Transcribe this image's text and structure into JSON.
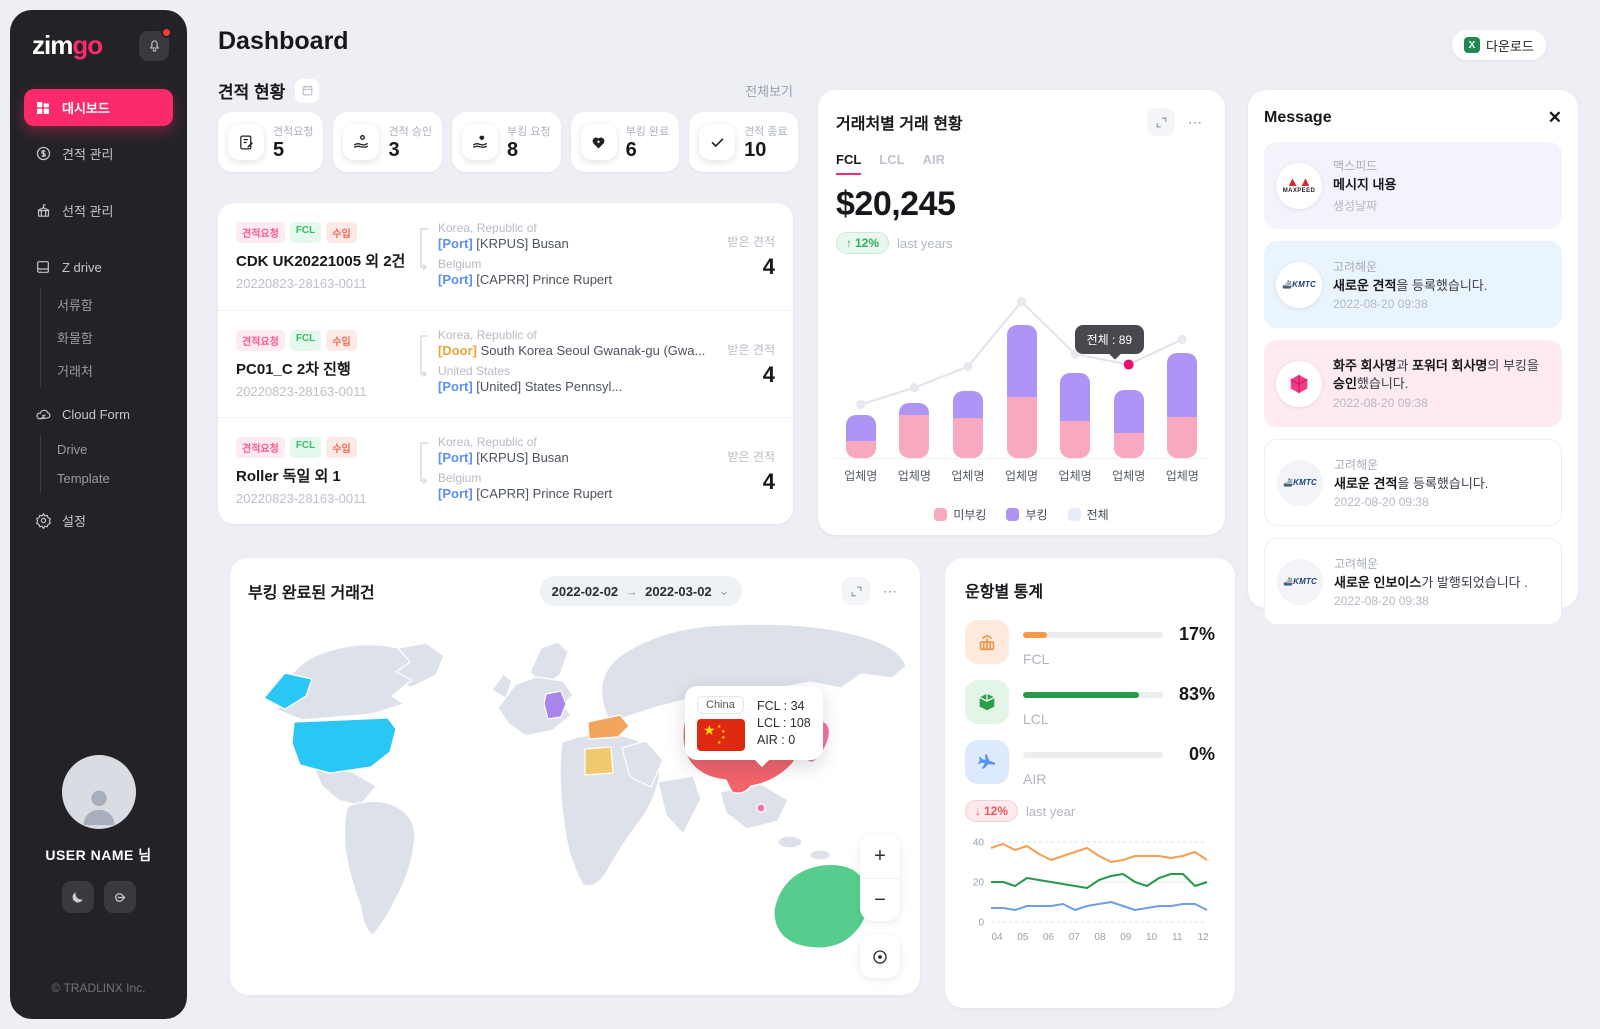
{
  "app": {
    "logo_zim": "zim",
    "logo_go": "go",
    "copyright": "© TRADLINX Inc."
  },
  "colors": {
    "accent": "#fb2a6a",
    "unbooked": "#f8a8bf",
    "booked": "#ae94f4",
    "total_line": "#e2e2e8",
    "active_dot": "#ec0f6d"
  },
  "sidebar": {
    "items": [
      {
        "label": "대시보드",
        "icon": "dashboard",
        "active": true
      },
      {
        "label": "견적 관리",
        "icon": "quote",
        "active": false
      },
      {
        "label": "선적 관리",
        "icon": "shipping",
        "active": false
      },
      {
        "label": "Z drive",
        "icon": "drive",
        "active": false,
        "children": [
          "서류함",
          "화물함",
          "거래처"
        ]
      },
      {
        "label": "Cloud Form",
        "icon": "cloud",
        "active": false,
        "children": [
          "Drive",
          "Template"
        ]
      },
      {
        "label": "설정",
        "icon": "settings",
        "active": false
      }
    ],
    "user": {
      "name": "USER NAME 님"
    }
  },
  "header": {
    "title": "Dashboard",
    "download_label": "다운로드"
  },
  "quotes": {
    "title": "견적 현황",
    "view_all": "전체보기",
    "received_label": "받은 견적",
    "stats": [
      {
        "label": "견적요청",
        "value": "5",
        "icon": "doc-edit"
      },
      {
        "label": "견적 승인",
        "value": "3",
        "icon": "hand-person"
      },
      {
        "label": "부킹 요청",
        "value": "8",
        "icon": "hand-heart"
      },
      {
        "label": "부킹 완료",
        "value": "6",
        "icon": "heart"
      },
      {
        "label": "견적 종료",
        "value": "10",
        "icon": "check"
      }
    ],
    "rows": [
      {
        "badges": [
          {
            "text": "견적요청",
            "type": "pink"
          },
          {
            "text": "FCL",
            "type": "green"
          },
          {
            "text": "수입",
            "type": "red"
          }
        ],
        "title": "CDK UK20221005 외 2건",
        "id": "20220823-28163-0011",
        "origin": {
          "country": "Korea, Republic of",
          "type": "[Port]",
          "type_class": "port",
          "detail": "[KRPUS] Busan"
        },
        "dest": {
          "country": "Belgium",
          "type": "[Port]",
          "type_class": "port",
          "detail": "[CAPRR] Prince Rupert"
        },
        "received": "4"
      },
      {
        "badges": [
          {
            "text": "견적요청",
            "type": "pink"
          },
          {
            "text": "FCL",
            "type": "green"
          },
          {
            "text": "수입",
            "type": "red"
          }
        ],
        "title": "PC01_C 2차 진행",
        "id": "20220823-28163-0011",
        "origin": {
          "country": "Korea, Republic of",
          "type": "[Door]",
          "type_class": "door",
          "detail": "South Korea Seoul Gwanak-gu (Gwa..."
        },
        "dest": {
          "country": "United States",
          "type": "[Port]",
          "type_class": "port",
          "detail": "[United] States Pennsyl..."
        },
        "received": "4"
      },
      {
        "badges": [
          {
            "text": "견적요청",
            "type": "pink"
          },
          {
            "text": "FCL",
            "type": "green"
          },
          {
            "text": "수입",
            "type": "red"
          }
        ],
        "title": "Roller 독일 외 1",
        "id": "20220823-28163-0011",
        "origin": {
          "country": "Korea, Republic of",
          "type": "[Port]",
          "type_class": "port",
          "detail": "[KRPUS] Busan"
        },
        "dest": {
          "country": "Belgium",
          "type": "[Port]",
          "type_class": "port",
          "detail": "[CAPRR] Prince Rupert"
        },
        "received": "4"
      }
    ]
  },
  "partner_chart": {
    "title": "거래처별 거래 현황",
    "tabs": [
      "FCL",
      "LCL",
      "AIR"
    ],
    "active_tab": "FCL",
    "amount": "$20,245",
    "delta": "12%",
    "delta_note": "last years",
    "tooltip_label": "전체 : 89",
    "highlight_index": 5,
    "legend": [
      {
        "label": "미부킹",
        "color": "#f8a8bf"
      },
      {
        "label": "부킹",
        "color": "#ae94f4"
      },
      {
        "label": "전체",
        "color": "#e8ecf8"
      }
    ],
    "chart_data": {
      "type": "bar",
      "categories": [
        "업체명",
        "업체명",
        "업체명",
        "업체명",
        "업체명",
        "업체명",
        "업체명"
      ],
      "series": [
        {
          "name": "미부킹",
          "values": [
            16,
            41,
            38,
            58,
            35,
            24,
            39
          ]
        },
        {
          "name": "부킹",
          "values": [
            25,
            11,
            26,
            69,
            46,
            41,
            61
          ]
        },
        {
          "name": "전체",
          "type": "line",
          "values": [
            51,
            67,
            87,
            149,
            99,
            89,
            113
          ]
        }
      ],
      "title": "거래처별 거래 현황",
      "xlabel": "",
      "ylabel": "",
      "ylim": [
        0,
        160
      ],
      "grid": false,
      "legend_position": "bottom"
    }
  },
  "message": {
    "title": "Message",
    "items": [
      {
        "logo": "maxpeed",
        "bg": "lavender",
        "company": "맥스피드",
        "parts": [
          {
            "t": "메시지 내용",
            "b": true
          }
        ],
        "date": "생성날짜"
      },
      {
        "logo": "kmtc",
        "bg": "blue",
        "company": "고려해운",
        "parts": [
          {
            "t": "새로운 견적",
            "b": true
          },
          {
            "t": "을 등록했습니다.",
            "b": false
          }
        ],
        "date": "2022-08-20 09:38"
      },
      {
        "logo": "zimgo",
        "bg": "pink",
        "company": "",
        "parts": [
          {
            "t": "화주 회사명",
            "b": true
          },
          {
            "t": "과 ",
            "b": false
          },
          {
            "t": "포워더 회사명",
            "b": true
          },
          {
            "t": "의 부킹을 ",
            "b": false
          },
          {
            "t": "승인",
            "b": true
          },
          {
            "t": "했습니다.",
            "b": false
          }
        ],
        "date": "2022-08-20 09:38"
      },
      {
        "logo": "kmtc",
        "bg": "white",
        "company": "고려해운",
        "parts": [
          {
            "t": "새로운 견적",
            "b": true
          },
          {
            "t": "을 등록했습니다.",
            "b": false
          }
        ],
        "date": "2022-08-20 09:38"
      },
      {
        "logo": "kmtc",
        "bg": "white",
        "company": "고려해운",
        "parts": [
          {
            "t": "새로운 인보이스",
            "b": true
          },
          {
            "t": "가 발행되었습니다 .",
            "b": false
          }
        ],
        "date": "2022-08-20 09:38"
      }
    ]
  },
  "map_panel": {
    "title": "부킹 완료된 거래건",
    "date_from": "2022-02-02",
    "date_to": "2022-03-02",
    "tooltip": {
      "country": "China",
      "lines": [
        "FCL : 34",
        "LCL : 108",
        "AIR : 0"
      ]
    },
    "country_colors": {
      "united-states": "#2bc7f4",
      "germany": "#a987ea",
      "turkey": "#f3a55d",
      "egypt": "#f1ca70",
      "china": "#f2636b",
      "south-korea": "#4a90f5",
      "japan": "#f272a8",
      "taiwan": "#f272a8",
      "australia": "#57cd8d"
    }
  },
  "transport_stats": {
    "title": "운항별 통계",
    "rows": [
      {
        "label": "FCL",
        "value": "17%",
        "pct": 17,
        "icon": "container",
        "icon_bg": "#fdeadd",
        "icon_color": "#ee8f3f",
        "bar_color": "#f59a47"
      },
      {
        "label": "LCL",
        "value": "83%",
        "pct": 83,
        "icon": "box",
        "icon_bg": "#e2f5e7",
        "icon_color": "#2f9e4a",
        "bar_color": "#259b48"
      },
      {
        "label": "AIR",
        "value": "0%",
        "pct": 0,
        "icon": "plane",
        "icon_bg": "#ddeafd",
        "icon_color": "#5b8ff0",
        "bar_color": "#c9ccd3"
      }
    ],
    "delta": "12%",
    "delta_note": "last year",
    "chart_data": {
      "type": "line",
      "x_labels": [
        "04",
        "05",
        "06",
        "07",
        "08",
        "09",
        "10",
        "11",
        "12"
      ],
      "y_ticks": [
        40,
        20,
        0
      ],
      "ylim": [
        0,
        42
      ],
      "series": [
        {
          "color": "#f59f4f",
          "values": [
            37,
            39,
            36,
            38,
            34,
            31,
            33,
            35,
            37,
            33,
            30,
            31,
            33,
            33,
            33,
            32,
            33,
            35,
            31
          ]
        },
        {
          "color": "#27994a",
          "values": [
            20,
            20,
            18,
            22,
            21,
            20,
            19,
            18,
            17,
            21,
            23,
            24,
            20,
            18,
            22,
            24,
            24,
            18,
            20
          ]
        },
        {
          "color": "#6f9ee8",
          "values": [
            7,
            7,
            6,
            8,
            8,
            8,
            9,
            6,
            8,
            9,
            10,
            8,
            6,
            7,
            8,
            8,
            9,
            9,
            6
          ]
        }
      ]
    }
  }
}
